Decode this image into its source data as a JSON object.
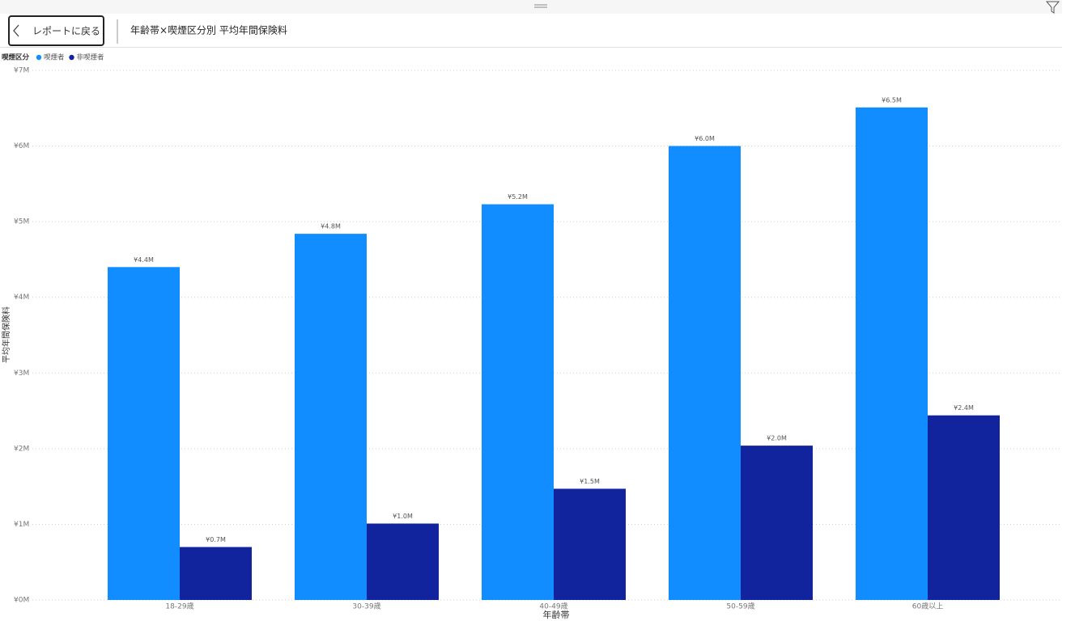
{
  "ui": {
    "back_button": "レポートに戻る",
    "visual_title": "年齢帯×喫煙区分別 平均年間保険料"
  },
  "chart_data": {
    "type": "bar",
    "legend_title": "喫煙区分",
    "y_label": "平均年間保険料",
    "x_label": "年齢帯",
    "categories": [
      "18-29歳",
      "30-39歳",
      "40-49歳",
      "50-59歳",
      "60歳以上"
    ],
    "series": [
      {
        "name": "喫煙者",
        "color": "#118dff",
        "values": [
          4400000,
          4840000,
          5230000,
          6000000,
          6510000
        ],
        "value_labels": [
          "¥4.4M",
          "¥4.8M",
          "¥5.2M",
          "¥6.0M",
          "¥6.5M"
        ]
      },
      {
        "name": "非喫煙者",
        "color": "#12239e",
        "values": [
          700000,
          1010000,
          1470000,
          2040000,
          2440000
        ],
        "value_labels": [
          "¥0.7M",
          "¥1.0M",
          "¥1.5M",
          "¥2.0M",
          "¥2.4M"
        ]
      }
    ],
    "ylim": [
      0,
      7000000
    ],
    "yticks": [
      {
        "value": 0,
        "label": "¥0M"
      },
      {
        "value": 1000000,
        "label": "¥1M"
      },
      {
        "value": 2000000,
        "label": "¥2M"
      },
      {
        "value": 3000000,
        "label": "¥3M"
      },
      {
        "value": 4000000,
        "label": "¥4M"
      },
      {
        "value": 5000000,
        "label": "¥5M"
      },
      {
        "value": 6000000,
        "label": "¥6M"
      },
      {
        "value": 7000000,
        "label": "¥7M"
      }
    ],
    "grid": true,
    "legend": "top-left"
  }
}
